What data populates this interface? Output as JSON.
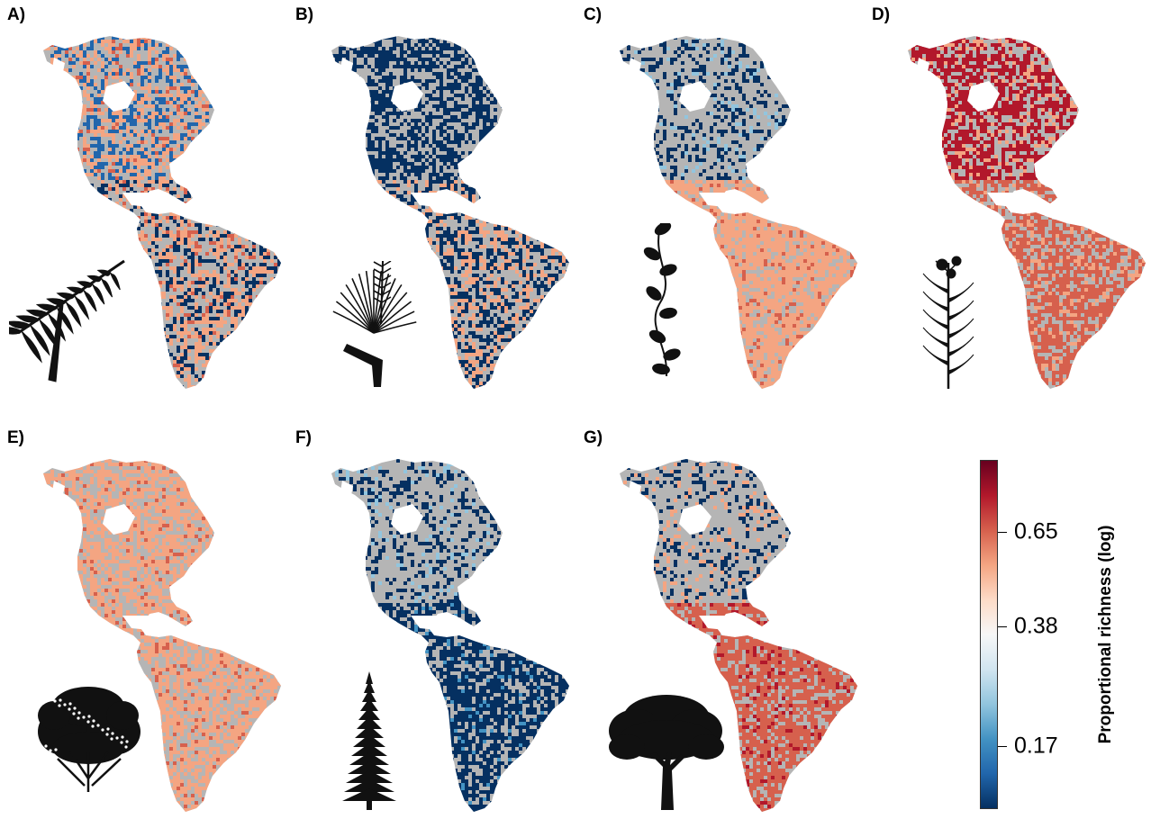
{
  "panels": [
    {
      "label": "A)",
      "silhouette": "fern-icon",
      "pattern": "mixed"
    },
    {
      "label": "B)",
      "silhouette": "epiphyte-icon",
      "pattern": "north-low"
    },
    {
      "label": "C)",
      "silhouette": "vine-icon",
      "pattern": "tropics-warm"
    },
    {
      "label": "D)",
      "silhouette": "herb-icon",
      "pattern": "all-high"
    },
    {
      "label": "E)",
      "silhouette": "shrub-icon",
      "pattern": "moderate"
    },
    {
      "label": "F)",
      "silhouette": "conifer-icon",
      "pattern": "tropics-low"
    },
    {
      "label": "G)",
      "silhouette": "tree-icon",
      "pattern": "tropics-high"
    }
  ],
  "legend": {
    "title": "Proportional richness (log)",
    "ticks": [
      {
        "label": "0.65",
        "value": 0.65
      },
      {
        "label": "0.38",
        "value": 0.38
      },
      {
        "label": "0.17",
        "value": 0.17
      }
    ],
    "colors": [
      "#053061",
      "#2166ac",
      "#4393c3",
      "#92c5de",
      "#d1e5f0",
      "#f7f7f7",
      "#fddbc7",
      "#f4a582",
      "#d6604d",
      "#b2182b",
      "#67001f"
    ]
  },
  "missing_color": "#b5b5b5"
}
